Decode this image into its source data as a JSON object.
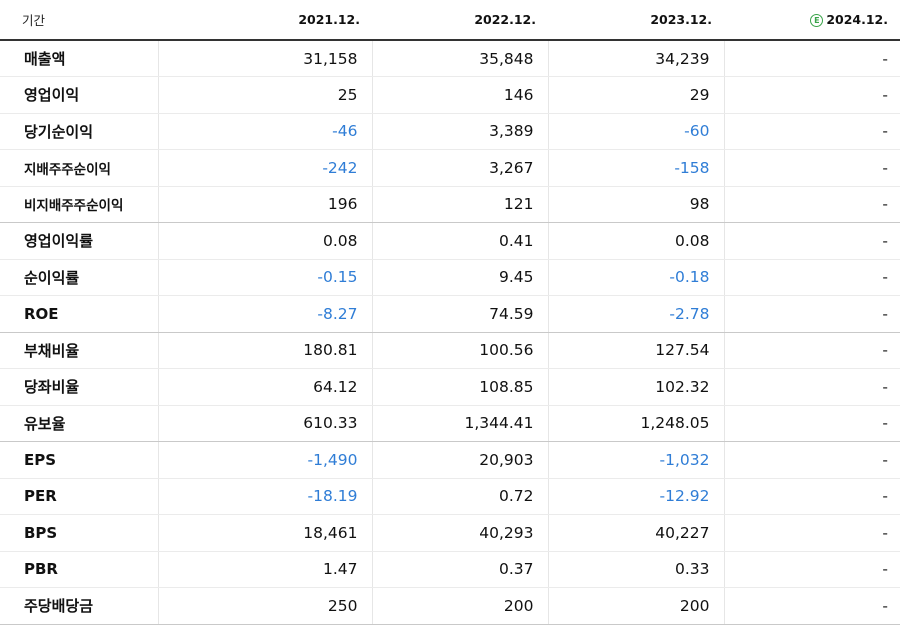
{
  "header": {
    "period_label": "기간",
    "years": [
      "2021.12.",
      "2022.12.",
      "2023.12."
    ],
    "estimate_mark": "E",
    "estimate_year": "2024.12."
  },
  "rows": [
    {
      "label": "매출액",
      "values": [
        "31,158",
        "35,848",
        "34,239"
      ],
      "estimate": "-"
    },
    {
      "label": "영업이익",
      "values": [
        "25",
        "146",
        "29"
      ],
      "estimate": "-"
    },
    {
      "label": "당기순이익",
      "values": [
        "-46",
        "3,389",
        "-60"
      ],
      "estimate": "-"
    },
    {
      "label": "지배주주순이익",
      "values": [
        "-242",
        "3,267",
        "-158"
      ],
      "estimate": "-"
    },
    {
      "label": "비지배주주순이익",
      "values": [
        "196",
        "121",
        "98"
      ],
      "estimate": "-"
    },
    {
      "label": "영업이익률",
      "values": [
        "0.08",
        "0.41",
        "0.08"
      ],
      "estimate": "-"
    },
    {
      "label": "순이익률",
      "values": [
        "-0.15",
        "9.45",
        "-0.18"
      ],
      "estimate": "-"
    },
    {
      "label": "ROE",
      "values": [
        "-8.27",
        "74.59",
        "-2.78"
      ],
      "estimate": "-"
    },
    {
      "label": "부채비율",
      "values": [
        "180.81",
        "100.56",
        "127.54"
      ],
      "estimate": "-"
    },
    {
      "label": "당좌비율",
      "values": [
        "64.12",
        "108.85",
        "102.32"
      ],
      "estimate": "-"
    },
    {
      "label": "유보율",
      "values": [
        "610.33",
        "1,344.41",
        "1,248.05"
      ],
      "estimate": "-"
    },
    {
      "label": "EPS",
      "values": [
        "-1,490",
        "20,903",
        "-1,032"
      ],
      "estimate": "-"
    },
    {
      "label": "PER",
      "values": [
        "-18.19",
        "0.72",
        "-12.92"
      ],
      "estimate": "-"
    },
    {
      "label": "BPS",
      "values": [
        "18,461",
        "40,293",
        "40,227"
      ],
      "estimate": "-"
    },
    {
      "label": "PBR",
      "values": [
        "1.47",
        "0.37",
        "0.33"
      ],
      "estimate": "-"
    },
    {
      "label": "주당배당금",
      "values": [
        "250",
        "200",
        "200"
      ],
      "estimate": "-"
    }
  ],
  "colors": {
    "negative": "#2f7dd6",
    "estimate_badge": "#3aa44a",
    "text": "#111111"
  }
}
